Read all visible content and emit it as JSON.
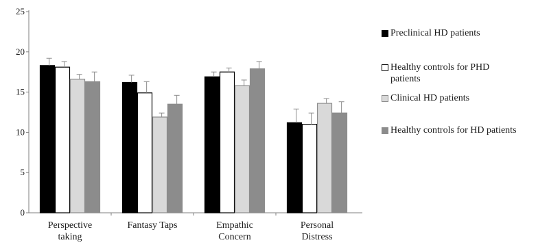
{
  "chart_data": {
    "type": "bar",
    "title": "",
    "xlabel": "",
    "ylabel": "",
    "ylim": [
      0,
      25
    ],
    "yticks": [
      0,
      5,
      10,
      15,
      20,
      25
    ],
    "grid": false,
    "legend_position": "right",
    "categories": [
      [
        "Perspective",
        "taking"
      ],
      [
        "Fantasy Taps"
      ],
      [
        "Empathic",
        "Concern"
      ],
      [
        "Personal",
        "Distress"
      ]
    ],
    "series": [
      {
        "name": "Preclinical HD patients",
        "color": "#000000",
        "outline": "#000000",
        "values": [
          18.3,
          16.2,
          16.9,
          11.2
        ],
        "errors": [
          0.9,
          0.9,
          0.6,
          1.7
        ]
      },
      {
        "name": "Healthy controls for PHD patients",
        "color": "#ffffff",
        "outline": "#000000",
        "values": [
          18.1,
          14.9,
          17.5,
          11.0
        ],
        "errors": [
          0.7,
          1.4,
          0.5,
          1.4
        ]
      },
      {
        "name": "Clinical HD patients",
        "color": "#d9d9d9",
        "outline": "#8c8c8c",
        "values": [
          16.6,
          11.9,
          15.8,
          13.6
        ],
        "errors": [
          0.6,
          0.5,
          0.7,
          0.6
        ]
      },
      {
        "name": "Healthy controls for HD patients",
        "color": "#8c8c8c",
        "outline": "#8c8c8c",
        "values": [
          16.3,
          13.5,
          17.9,
          12.4
        ],
        "errors": [
          1.2,
          1.1,
          0.9,
          1.4
        ]
      }
    ]
  }
}
